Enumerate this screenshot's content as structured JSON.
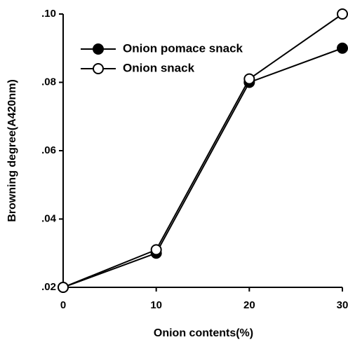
{
  "chart_data": {
    "type": "line",
    "x_label": "Onion contents(%)",
    "y_label": "Browning degree(A420nm)",
    "x": [
      0,
      10,
      20,
      30
    ],
    "series": [
      {
        "name": "Onion pomace snack",
        "color": "#000000",
        "marker": "filled",
        "values": [
          0.02,
          0.03,
          0.08,
          0.09
        ]
      },
      {
        "name": "Onion snack",
        "color": "#000000",
        "marker": "open",
        "values": [
          0.02,
          0.031,
          0.081,
          0.1
        ]
      }
    ],
    "xlim": [
      0,
      30
    ],
    "xticks": [
      0,
      10,
      20,
      30
    ],
    "ylim": [
      0.02,
      0.1
    ],
    "yticks": [
      {
        "value": 0.02,
        "label": ".02"
      },
      {
        "value": 0.04,
        "label": ".04"
      },
      {
        "value": 0.06,
        "label": ".06"
      },
      {
        "value": 0.08,
        "label": ".08"
      },
      {
        "value": 0.1,
        "label": ".10"
      }
    ],
    "legend": "upper-left",
    "grid": false
  }
}
